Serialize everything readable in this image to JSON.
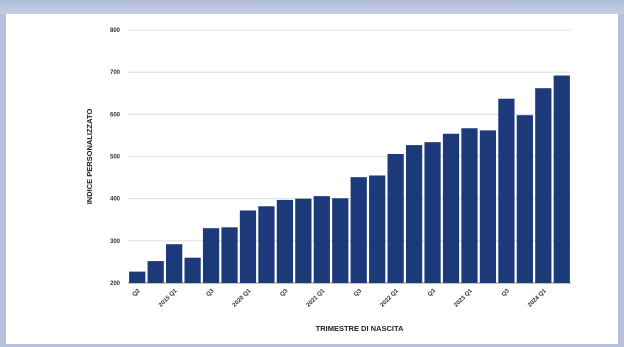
{
  "chart_data": {
    "type": "bar",
    "title": "",
    "xlabel": "TRIMESTRE DI NASCITA",
    "ylabel": "INDICE PERSONALIZZATO",
    "ylim": [
      200,
      800
    ],
    "yticks": [
      200,
      300,
      400,
      500,
      600,
      700,
      800
    ],
    "grid": true,
    "categories": [
      "Q1",
      "Q2",
      "Q3",
      "Q4",
      "Q1",
      "Q2",
      "Q3",
      "Q4",
      "Q1",
      "Q2",
      "Q3",
      "Q4",
      "Q1",
      "Q2",
      "Q3",
      "Q4",
      "Q1",
      "Q2",
      "Q3",
      "Q4",
      "Q1",
      "Q2",
      "Q3",
      "Q4"
    ],
    "xtick_labels": [
      "Q2",
      "",
      "2015 Q1",
      "",
      "Q3",
      "",
      "2020 Q1",
      "",
      "Q3",
      "",
      "2021 Q1",
      "",
      "Q3",
      "",
      "2022 Q1",
      "",
      "Q3",
      "",
      "2023 Q1",
      "",
      "Q3",
      "",
      "2024 Q1",
      ""
    ],
    "values": [
      227,
      252,
      292,
      260,
      330,
      332,
      372,
      382,
      397,
      400,
      406,
      401,
      451,
      455,
      506,
      527,
      534,
      554,
      567,
      562,
      637,
      598,
      662,
      692
    ],
    "bar_color": "#1c3a7a"
  }
}
